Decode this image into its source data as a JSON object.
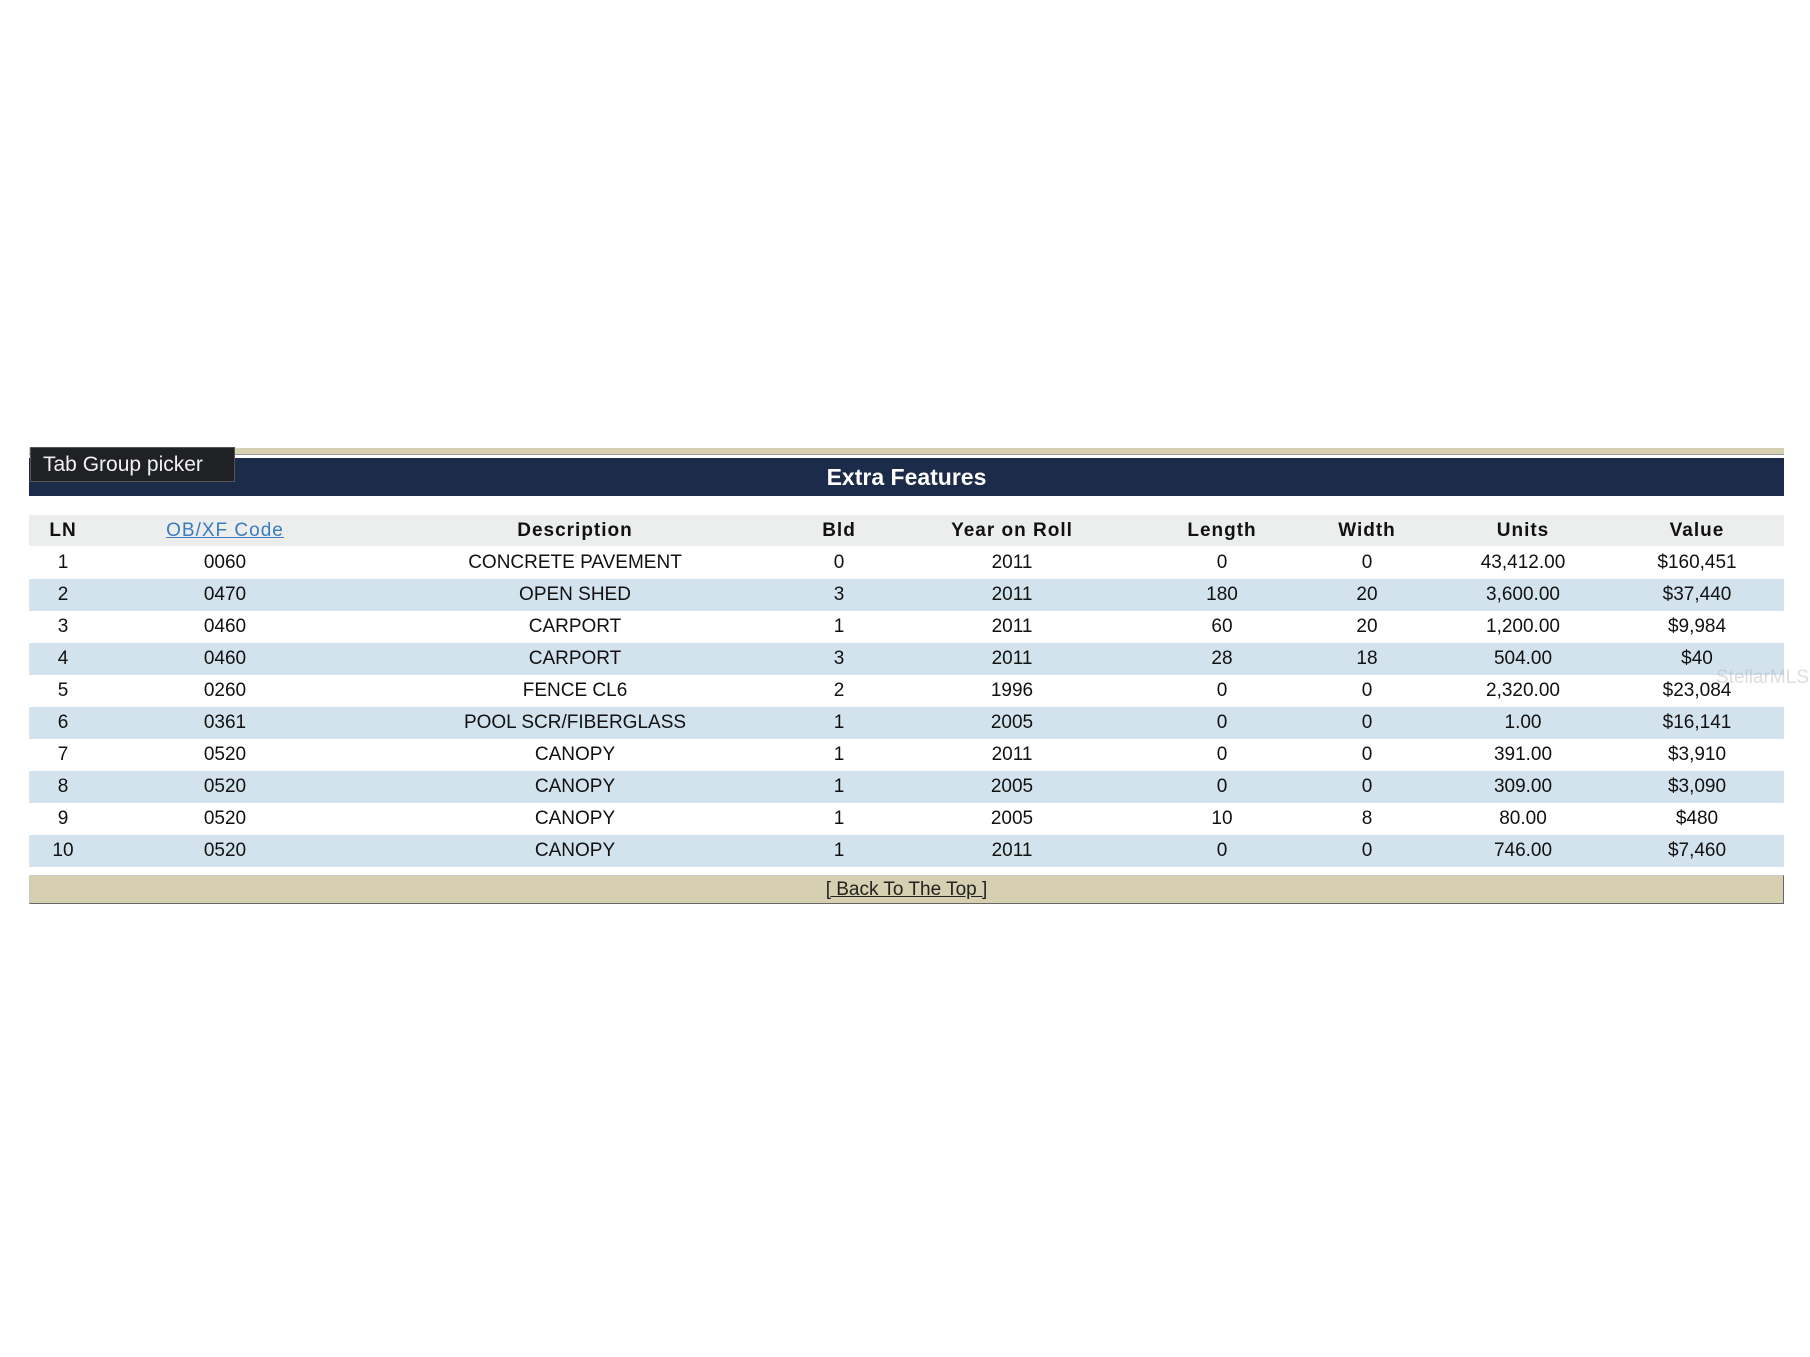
{
  "tab_tooltip": "Tab Group picker",
  "table": {
    "title": "Extra Features",
    "columns": [
      "LN",
      "OB/XF Code",
      "Description",
      "Bld",
      "Year on Roll",
      "Length",
      "Width",
      "Units",
      "Value"
    ],
    "rows": [
      [
        "1",
        "0060",
        "CONCRETE PAVEMENT",
        "0",
        "2011",
        "0",
        "0",
        "43,412.00",
        "$160,451"
      ],
      [
        "2",
        "0470",
        "OPEN SHED",
        "3",
        "2011",
        "180",
        "20",
        "3,600.00",
        "$37,440"
      ],
      [
        "3",
        "0460",
        "CARPORT",
        "1",
        "2011",
        "60",
        "20",
        "1,200.00",
        "$9,984"
      ],
      [
        "4",
        "0460",
        "CARPORT",
        "3",
        "2011",
        "28",
        "18",
        "504.00",
        "$40"
      ],
      [
        "5",
        "0260",
        "FENCE CL6",
        "2",
        "1996",
        "0",
        "0",
        "2,320.00",
        "$23,084"
      ],
      [
        "6",
        "0361",
        "POOL SCR/FIBERGLASS",
        "1",
        "2005",
        "0",
        "0",
        "1.00",
        "$16,141"
      ],
      [
        "7",
        "0520",
        "CANOPY",
        "1",
        "2011",
        "0",
        "0",
        "391.00",
        "$3,910"
      ],
      [
        "8",
        "0520",
        "CANOPY",
        "1",
        "2005",
        "0",
        "0",
        "309.00",
        "$3,090"
      ],
      [
        "9",
        "0520",
        "CANOPY",
        "1",
        "2005",
        "10",
        "8",
        "80.00",
        "$480"
      ],
      [
        "10",
        "0520",
        "CANOPY",
        "1",
        "2011",
        "0",
        "0",
        "746.00",
        "$7,460"
      ]
    ]
  },
  "back_to_top": "[ Back To The Top ]",
  "watermark": "StellarMLS"
}
